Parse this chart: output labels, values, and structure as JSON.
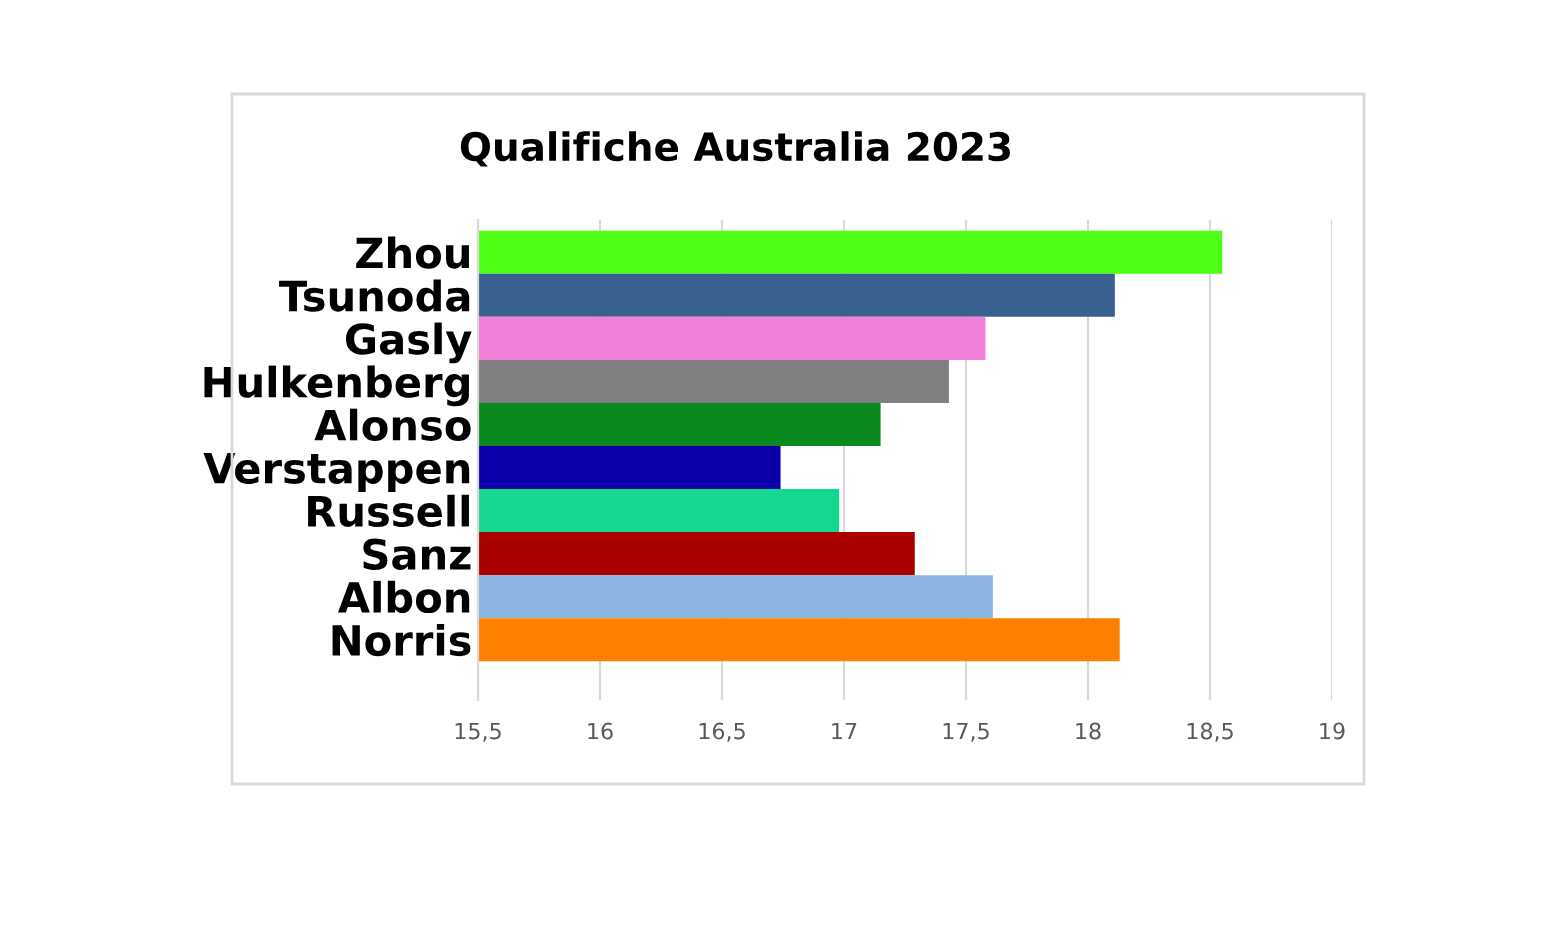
{
  "chart_data": {
    "type": "bar",
    "orientation": "horizontal",
    "title": "Qualifiche Australia 2023",
    "categories": [
      "Zhou",
      "Tsunoda",
      "Gasly",
      "Hulkenberg",
      "Alonso",
      "Verstappen",
      "Russell",
      "Sanz",
      "Albon",
      "Norris"
    ],
    "values": [
      18.55,
      18.11,
      17.58,
      17.43,
      17.15,
      16.74,
      16.98,
      17.29,
      17.61,
      18.13
    ],
    "colors": [
      "#4cff14",
      "#3a6090",
      "#f080d8",
      "#808080",
      "#0a8a1e",
      "#0a00aa",
      "#14d890",
      "#aa0000",
      "#8cb4e0",
      "#ff8000"
    ],
    "xlim": [
      15.5,
      19
    ],
    "xticks": [
      {
        "value": 15.5,
        "label": "15,5"
      },
      16,
      {
        "value": 16.5,
        "label": "16,5"
      },
      17,
      {
        "value": 17.5,
        "label": "17,5"
      },
      18,
      {
        "value": 18.5,
        "label": "18,5"
      },
      19
    ],
    "grid": "x"
  }
}
